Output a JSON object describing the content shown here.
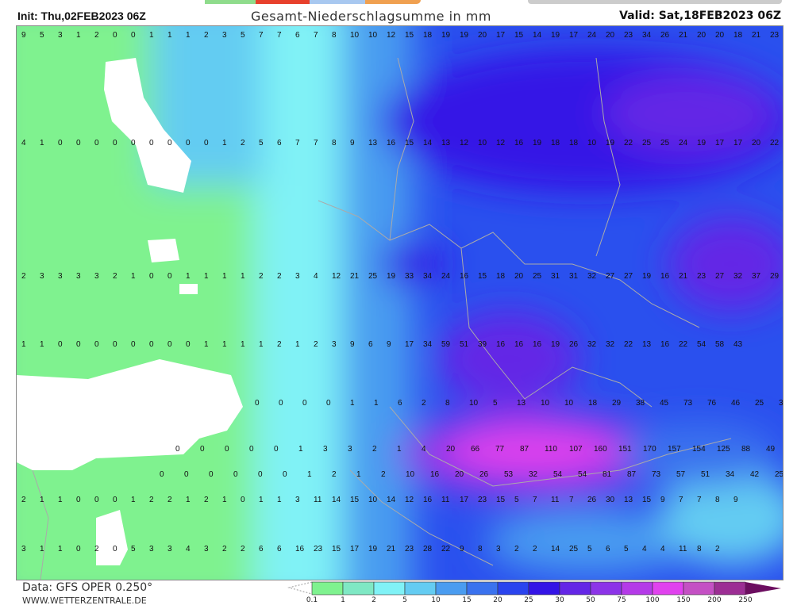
{
  "header": {
    "init": "Init: Thu,02FEB2023 06Z",
    "title": "Gesamt-Niederschlagsumme in mm",
    "valid": "Valid: Sat,18FEB2023 06Z"
  },
  "footer": {
    "data_source": "Data: GFS OPER 0.250°",
    "website": "WWW.WETTERZENTRALE.DE"
  },
  "legend": {
    "labels": [
      "0.1",
      "1",
      "2",
      "5",
      "10",
      "15",
      "20",
      "25",
      "30",
      "50",
      "75",
      "100",
      "150",
      "200",
      "250"
    ],
    "colors": [
      "#7ff28f",
      "#7fe8c4",
      "#80f2f6",
      "#64ccf2",
      "#4a9cf0",
      "#3a72ee",
      "#2a44ee",
      "#3414e6",
      "#6426e6",
      "#8c34e8",
      "#b43ae8",
      "#e042ee",
      "#c450c4",
      "#9c2e94",
      "#6c0e60"
    ]
  },
  "map": {
    "value_rows": [
      [
        "9",
        "5",
        "3",
        "1",
        "2",
        "0",
        "0",
        "1",
        "1",
        "1",
        "2",
        "3",
        "5",
        "7",
        "7",
        "6",
        "7",
        "8",
        "10",
        "10",
        "12",
        "15",
        "18",
        "19",
        "19",
        "20",
        "17",
        "15",
        "14",
        "19",
        "17",
        "24",
        "20",
        "23",
        "34",
        "26",
        "21",
        "20",
        "20",
        "18",
        "21",
        "23"
      ],
      [
        "4",
        "1",
        "0",
        "0",
        "0",
        "0",
        "0",
        "0",
        "0",
        "0",
        "0",
        "1",
        "2",
        "5",
        "6",
        "7",
        "7",
        "8",
        "9",
        "13",
        "16",
        "15",
        "14",
        "13",
        "12",
        "10",
        "12",
        "16",
        "19",
        "18",
        "18",
        "10",
        "19",
        "22",
        "25",
        "25",
        "24",
        "19",
        "17",
        "17",
        "20",
        "22"
      ],
      [
        "2",
        "3",
        "3",
        "3",
        "3",
        "2",
        "1",
        "0",
        "0",
        "1",
        "1",
        "1",
        "1",
        "2",
        "2",
        "3",
        "4",
        "12",
        "21",
        "25",
        "19",
        "33",
        "34",
        "24",
        "16",
        "15",
        "18",
        "20",
        "25",
        "31",
        "31",
        "32",
        "27",
        "27",
        "19",
        "16",
        "21",
        "23",
        "27",
        "32",
        "37",
        "29"
      ],
      [
        "1",
        "1",
        "0",
        "0",
        "0",
        "0",
        "0",
        "0",
        "0",
        "0",
        "1",
        "1",
        "1",
        "1",
        "2",
        "1",
        "2",
        "3",
        "9",
        "6",
        "9",
        "17",
        "34",
        "59",
        "51",
        "39",
        "16",
        "16",
        "16",
        "19",
        "26",
        "32",
        "32",
        "22",
        "13",
        "16",
        "22",
        "54",
        "58",
        "43"
      ],
      [
        "0",
        "0",
        "0",
        "0",
        "1",
        "1",
        "6",
        "2",
        "8",
        "10",
        "5",
        "13",
        "10",
        "10",
        "18",
        "29",
        "38",
        "45",
        "73",
        "76",
        "46",
        "25",
        "31",
        "23",
        "25",
        "16",
        "15",
        "15",
        "18",
        "18",
        "9"
      ],
      [
        "0",
        "0",
        "0",
        "0",
        "0",
        "1",
        "3",
        "3",
        "2",
        "1",
        "4",
        "20",
        "66",
        "77",
        "87",
        "110",
        "107",
        "160",
        "151",
        "170",
        "157",
        "154",
        "125",
        "88",
        "49",
        "30",
        "21",
        "23"
      ],
      [
        "0",
        "0",
        "0",
        "0",
        "0",
        "0",
        "1",
        "2",
        "1",
        "2",
        "10",
        "16",
        "20",
        "26",
        "53",
        "32",
        "54",
        "54",
        "81",
        "87",
        "73",
        "57",
        "51",
        "34",
        "42",
        "25",
        "16",
        "11",
        "10",
        "16",
        "16",
        "15",
        "16"
      ],
      [
        "2",
        "1",
        "1",
        "0",
        "0",
        "0",
        "1",
        "2",
        "2",
        "1",
        "2",
        "1",
        "0",
        "1",
        "1",
        "3",
        "11",
        "14",
        "15",
        "10",
        "14",
        "12",
        "16",
        "11",
        "17",
        "23",
        "15",
        "5",
        "7",
        "11",
        "7",
        "26",
        "30",
        "13",
        "15",
        "9",
        "7",
        "7",
        "8",
        "9"
      ],
      [
        "3",
        "1",
        "1",
        "0",
        "2",
        "0",
        "5",
        "3",
        "3",
        "4",
        "3",
        "2",
        "2",
        "6",
        "6",
        "16",
        "23",
        "15",
        "17",
        "19",
        "21",
        "23",
        "28",
        "22",
        "9",
        "8",
        "3",
        "2",
        "2",
        "14",
        "25",
        "5",
        "6",
        "5",
        "4",
        "4",
        "11",
        "8",
        "2"
      ]
    ]
  }
}
